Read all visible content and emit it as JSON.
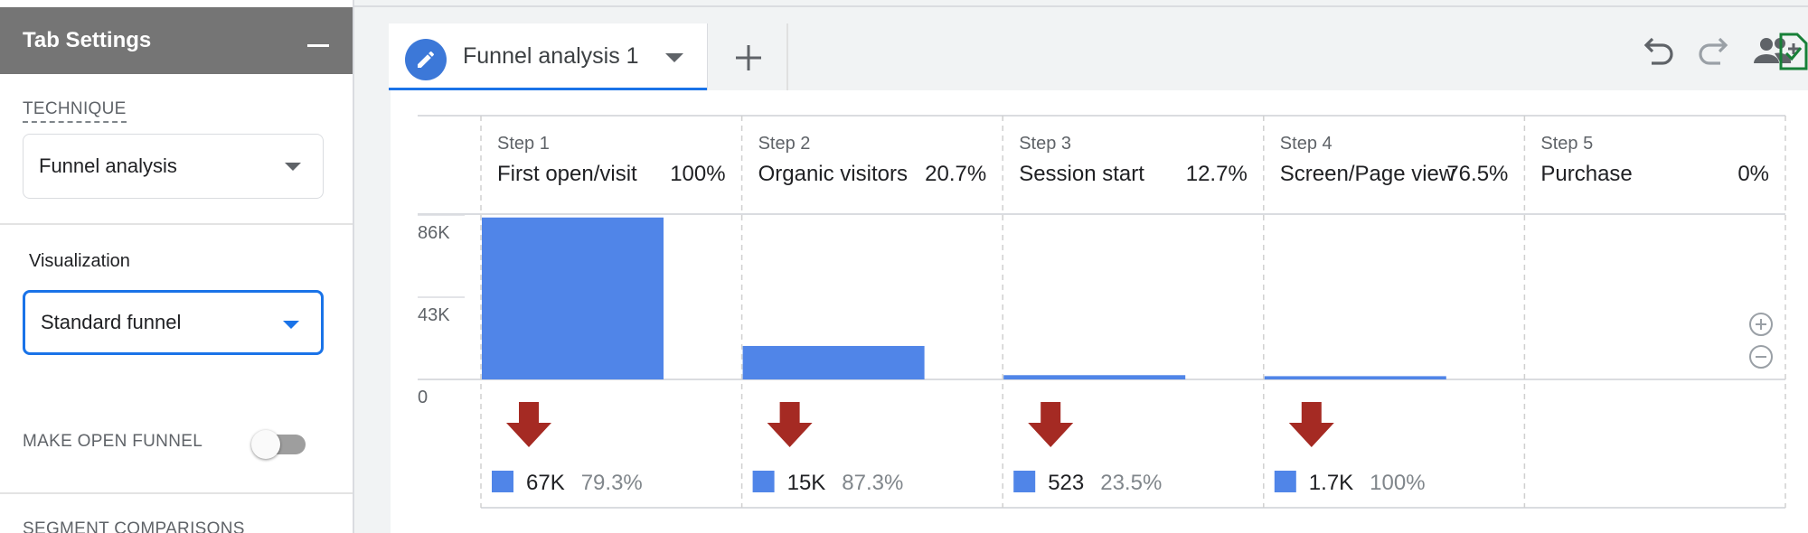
{
  "settings_panel": {
    "title": "Tab Settings",
    "technique": {
      "label": "TECHNIQUE",
      "value": "Funnel analysis"
    },
    "visualization": {
      "label": "Visualization",
      "value": "Standard funnel"
    },
    "open_funnel": {
      "label": "MAKE OPEN FUNNEL",
      "enabled": false
    },
    "segment_comparisons_label": "SEGMENT COMPARISONS"
  },
  "tabs": [
    {
      "label": "Funnel analysis 1",
      "icon": "edit-pencil-icon"
    }
  ],
  "add_tab_icon": "plus-icon",
  "toolbar": [
    {
      "name": "undo-icon"
    },
    {
      "name": "redo-icon"
    },
    {
      "name": "share-people-icon"
    },
    {
      "name": "save-document-icon"
    }
  ],
  "colors": {
    "bar": "#5085e8",
    "drop_arrow": "#a52a23",
    "accent": "#1a73e8"
  },
  "chart_data": {
    "type": "bar",
    "ylim": [
      0,
      86000
    ],
    "y_ticks": [
      "86K",
      "43K",
      "0"
    ],
    "y_tick_values": [
      86000,
      43000,
      0
    ],
    "steps": [
      {
        "step": "Step 1",
        "name": "First open/visit",
        "pct": "100%",
        "value": 84700,
        "dropoff": "67K",
        "dropoff_pct": "79.3%"
      },
      {
        "step": "Step 2",
        "name": "Organic visitors",
        "pct": "20.7%",
        "value": 17500,
        "dropoff": "15K",
        "dropoff_pct": "87.3%"
      },
      {
        "step": "Step 3",
        "name": "Session start",
        "pct": "12.7%",
        "value": 2230,
        "dropoff": "523",
        "dropoff_pct": "23.5%"
      },
      {
        "step": "Step 4",
        "name": "Screen/Page view",
        "pct": "76.5%",
        "value": 1700,
        "dropoff": "1.7K",
        "dropoff_pct": "100%"
      },
      {
        "step": "Step 5",
        "name": "Purchase",
        "pct": "0%",
        "value": 0,
        "dropoff": "",
        "dropoff_pct": ""
      }
    ],
    "zoom_controls": [
      "zoom-in-icon",
      "zoom-out-icon"
    ]
  }
}
